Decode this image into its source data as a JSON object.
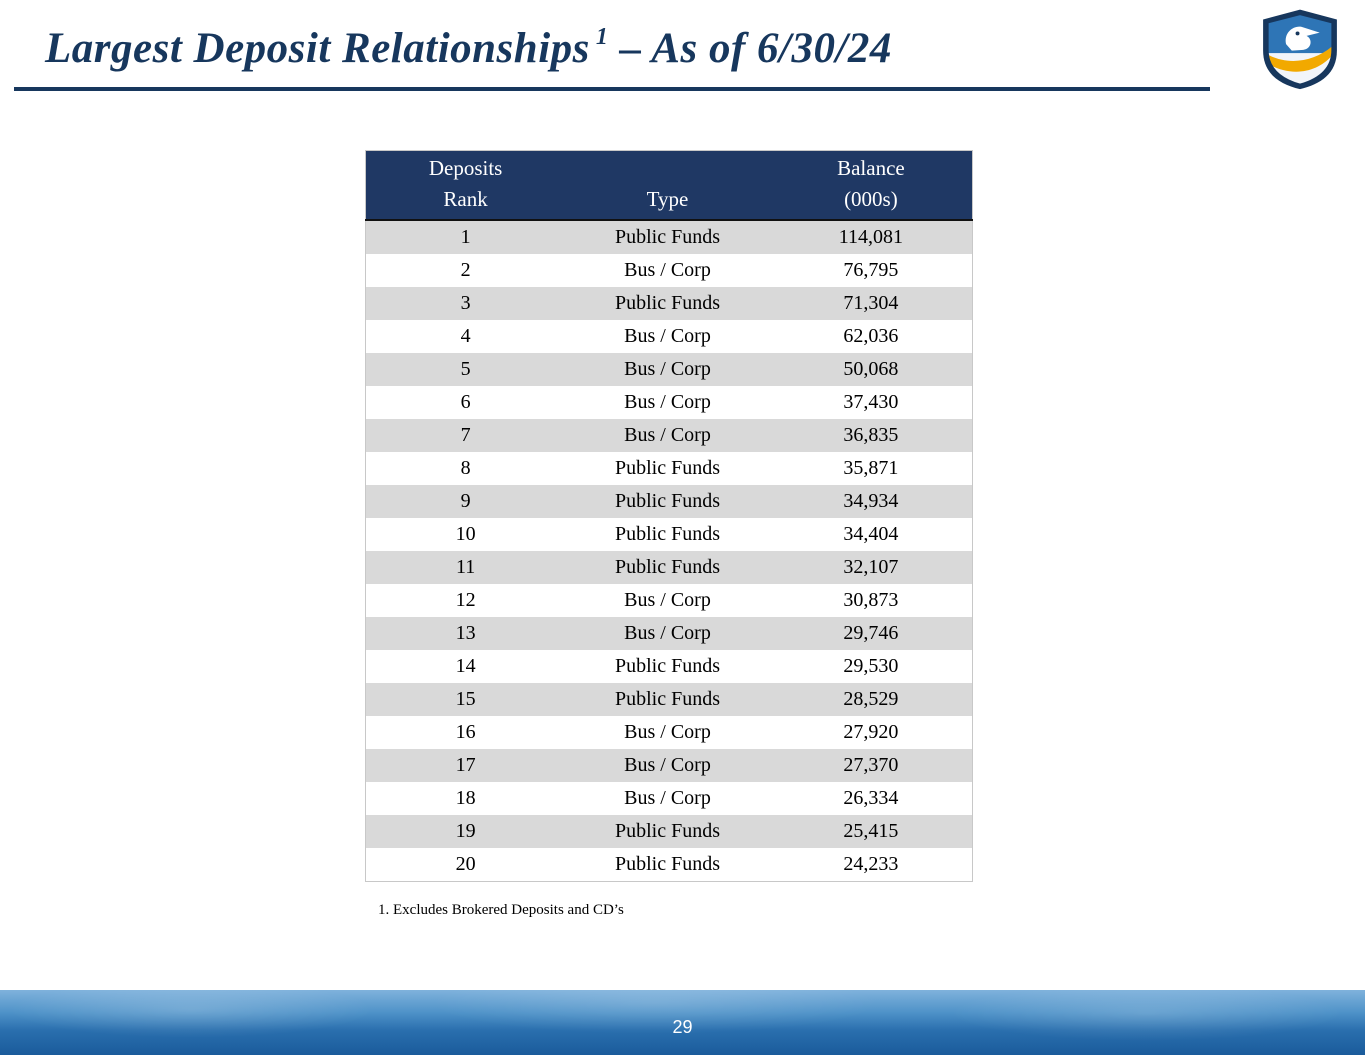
{
  "slide": {
    "title_main": "Largest Deposit Relationships",
    "title_superscript": "1",
    "title_suffix": " – As of 6/30/24",
    "footnote": "1. Excludes Brokered Deposits and CD’s",
    "page_number": "29"
  },
  "logo": {
    "name": "eagle-shield-logo",
    "colors": {
      "shield_navy": "#17375D",
      "shield_blue": "#2E75B6",
      "shield_gold": "#F2A900",
      "eagle_white": "#FFFFFF"
    }
  },
  "table": {
    "headers": [
      {
        "line1": "Deposits",
        "line2": "Rank"
      },
      {
        "line1": "",
        "line2": "Type"
      },
      {
        "line1": "Balance",
        "line2": "(000s)"
      }
    ],
    "rows": [
      {
        "rank": "1",
        "type": "Public Funds",
        "balance": "114,081"
      },
      {
        "rank": "2",
        "type": "Bus / Corp",
        "balance": "76,795"
      },
      {
        "rank": "3",
        "type": "Public Funds",
        "balance": "71,304"
      },
      {
        "rank": "4",
        "type": "Bus / Corp",
        "balance": "62,036"
      },
      {
        "rank": "5",
        "type": "Bus / Corp",
        "balance": "50,068"
      },
      {
        "rank": "6",
        "type": "Bus / Corp",
        "balance": "37,430"
      },
      {
        "rank": "7",
        "type": "Bus / Corp",
        "balance": "36,835"
      },
      {
        "rank": "8",
        "type": "Public Funds",
        "balance": "35,871"
      },
      {
        "rank": "9",
        "type": "Public Funds",
        "balance": "34,934"
      },
      {
        "rank": "10",
        "type": "Public Funds",
        "balance": "34,404"
      },
      {
        "rank": "11",
        "type": "Public Funds",
        "balance": "32,107"
      },
      {
        "rank": "12",
        "type": "Bus / Corp",
        "balance": "30,873"
      },
      {
        "rank": "13",
        "type": "Bus / Corp",
        "balance": "29,746"
      },
      {
        "rank": "14",
        "type": "Public Funds",
        "balance": "29,530"
      },
      {
        "rank": "15",
        "type": "Public Funds",
        "balance": "28,529"
      },
      {
        "rank": "16",
        "type": "Bus / Corp",
        "balance": "27,920"
      },
      {
        "rank": "17",
        "type": "Bus / Corp",
        "balance": "27,370"
      },
      {
        "rank": "18",
        "type": "Bus / Corp",
        "balance": "26,334"
      },
      {
        "rank": "19",
        "type": "Public Funds",
        "balance": "25,415"
      },
      {
        "rank": "20",
        "type": "Public Funds",
        "balance": "24,233"
      }
    ]
  },
  "colors": {
    "title_navy": "#17375D",
    "table_header_bg": "#1F3864",
    "row_alt_gray": "#D9D9D9",
    "footer_blue": "#2A6FAE"
  }
}
